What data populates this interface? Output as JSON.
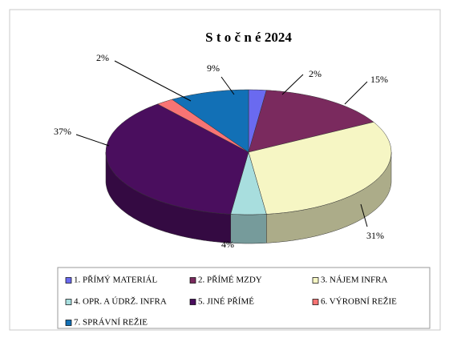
{
  "chart_data": {
    "type": "pie",
    "title": "S t o č n é 2024",
    "categories": [
      "1. PŘÍMÝ MATERIÁL",
      "2. PŘÍMÉ MZDY",
      "3. NÁJEM INFRA",
      "4. OPR. A ÚDRŽ. INFRA",
      "5. JINÉ PŘÍMÉ",
      "6. VÝROBNÍ REŽIE",
      "7. SPRÁVNÍ REŽIE"
    ],
    "values": [
      2,
      15,
      31,
      4,
      37,
      2,
      9
    ],
    "value_labels": [
      "2%",
      "15%",
      "31%",
      "4%",
      "37%",
      "2%",
      "9%"
    ],
    "colors": [
      "#6a6af0",
      "#7a2a5e",
      "#f6f6c4",
      "#a8dede",
      "#4a0e5e",
      "#f87474",
      "#1270b6"
    ],
    "legend": "bottom"
  }
}
